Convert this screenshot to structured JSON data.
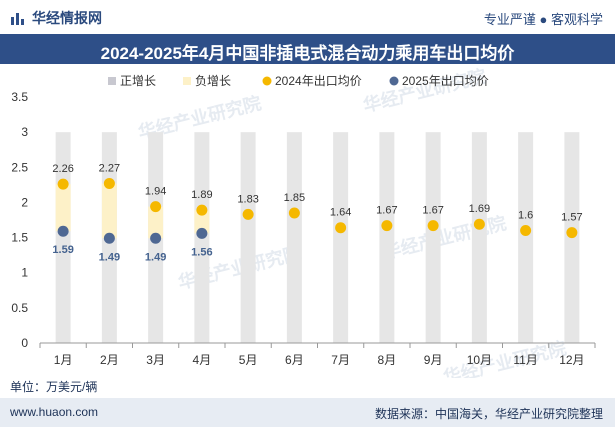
{
  "header": {
    "brand": "华经情报网",
    "tagline": "专业严谨 ● 客观科学"
  },
  "chart_data": {
    "type": "line",
    "title": "2024-2025年4月中国非插电式混合动力乘用车出口均价",
    "categories": [
      "1月",
      "2月",
      "3月",
      "4月",
      "5月",
      "6月",
      "7月",
      "8月",
      "9月",
      "10月",
      "11月",
      "12月"
    ],
    "series": [
      {
        "name": "正增长",
        "kind": "band",
        "color": "#c8c8d0",
        "values": [
          null,
          null,
          null,
          null,
          null,
          null,
          null,
          null,
          null,
          null,
          null,
          null
        ]
      },
      {
        "name": "负增长",
        "kind": "band",
        "color": "#fdf1c8",
        "values": [
          null,
          null,
          null,
          null,
          null,
          null,
          null,
          null,
          null,
          null,
          null,
          null
        ]
      },
      {
        "name": "2024年出口均价",
        "kind": "point",
        "color": "#f5b800",
        "values": [
          2.26,
          2.27,
          1.94,
          1.89,
          1.83,
          1.85,
          1.64,
          1.67,
          1.67,
          1.69,
          1.6,
          1.57
        ]
      },
      {
        "name": "2025年出口均价",
        "kind": "point",
        "color": "#4f6893",
        "values": [
          1.59,
          1.49,
          1.49,
          1.56,
          null,
          null,
          null,
          null,
          null,
          null,
          null,
          null
        ]
      }
    ],
    "ylim": [
      0,
      3.5
    ],
    "yticks": [
      "0",
      "0.5",
      "1",
      "1.5",
      "2",
      "2.5",
      "3",
      "3.5"
    ],
    "grid": false,
    "legend": "top",
    "colors": {
      "background_bar": "#e6e6e6",
      "negative_band": "#fdf1c8"
    }
  },
  "watermark": "华经产业研究院",
  "unit": "单位：万美元/辆",
  "footer": {
    "website": "www.huaon.com",
    "source": "数据来源：中国海关，华经产业研究院整理"
  }
}
